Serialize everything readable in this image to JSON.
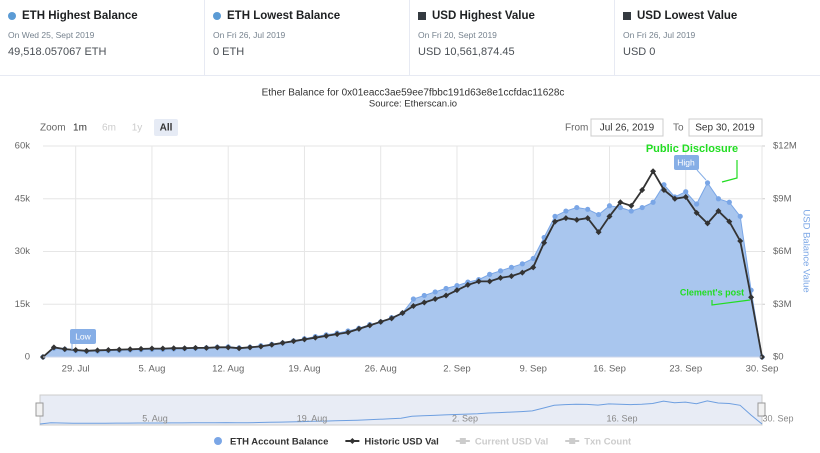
{
  "cards": [
    {
      "title": "ETH Highest Balance",
      "date": "On Wed 25, Sept 2019",
      "value": "49,518.057067 ETH"
    },
    {
      "title": "ETH Lowest Balance",
      "date": "On Fri 26, Jul 2019",
      "value": "0 ETH"
    },
    {
      "title": "USD Highest Value",
      "date": "On Fri 20, Sept 2019",
      "value": "USD 10,561,874.45"
    },
    {
      "title": "USD Lowest Value",
      "date": "On Fri 26, Jul 2019",
      "value": "USD 0"
    }
  ],
  "controls": {
    "zoom": "Zoom",
    "buttons": [
      "1m",
      "6m",
      "1y",
      "All"
    ],
    "from": "From",
    "from_date": "Jul 26, 2019",
    "to": "To",
    "to_date": "Sep 30, 2019"
  },
  "navigator": {
    "labels": [
      "5. Aug",
      "19. Aug",
      "2. Sep",
      "16. Sep",
      "30. Sep"
    ]
  },
  "chart_data": {
    "type": "line",
    "title": "Ether Balance for 0x01eacc3ae59ee7fbbc191d63e8e1ccfdac11628c",
    "subtitle": "Source: Etherscan.io",
    "y2_label": "USD Balance Value",
    "categories": [
      null,
      null,
      null,
      "29. Jul",
      null,
      null,
      null,
      null,
      null,
      null,
      "5. Aug",
      null,
      null,
      null,
      null,
      null,
      null,
      "12. Aug",
      null,
      null,
      null,
      null,
      null,
      null,
      "19. Aug",
      null,
      null,
      null,
      null,
      null,
      null,
      "26. Aug",
      null,
      null,
      null,
      null,
      null,
      null,
      "2. Sep",
      null,
      null,
      null,
      null,
      null,
      null,
      "9. Sep",
      null,
      null,
      null,
      null,
      null,
      null,
      "16. Sep",
      null,
      null,
      null,
      null,
      null,
      null,
      "23. Sep",
      null,
      null,
      null,
      null,
      null,
      null,
      "30. Sep"
    ],
    "series": [
      {
        "name": "ETH Account Balance",
        "color": "#7aa6e6",
        "fill": "#a9c6ee",
        "values": [
          0,
          2500,
          2200,
          1800,
          1600,
          1700,
          1800,
          1900,
          2000,
          2100,
          2200,
          2200,
          2300,
          2400,
          2500,
          2600,
          2800,
          2900,
          2600,
          2800,
          3200,
          3600,
          4000,
          4600,
          5200,
          5800,
          6300,
          6800,
          7400,
          8200,
          9200,
          10000,
          11200,
          12500,
          16500,
          17500,
          18500,
          19500,
          20300,
          21300,
          22000,
          23500,
          24500,
          25500,
          26500,
          28000,
          34000,
          40000,
          41500,
          42500,
          42000,
          40500,
          43000,
          42500,
          41500,
          42500,
          44000,
          49000,
          45500,
          47000,
          43500,
          49518.057067,
          45000,
          44000,
          40000,
          19000,
          0
        ]
      },
      {
        "name": "Historic USD Val",
        "color": "#333333",
        "axis": "y2",
        "values": [
          0,
          550000,
          450000,
          400000,
          350000,
          380000,
          400000,
          420000,
          440000,
          460000,
          480000,
          480000,
          500000,
          500000,
          520000,
          520000,
          550000,
          550000,
          500000,
          550000,
          600000,
          700000,
          800000,
          900000,
          1000000,
          1100000,
          1200000,
          1300000,
          1400000,
          1600000,
          1800000,
          2000000,
          2200000,
          2500000,
          2900000,
          3100000,
          3300000,
          3500000,
          3800000,
          4100000,
          4300000,
          4300000,
          4500000,
          4600000,
          4800000,
          5100000,
          6500000,
          7700000,
          7900000,
          7800000,
          7900000,
          7100000,
          8000000,
          8800000,
          8600000,
          9500000,
          10561874.45,
          9500000,
          9000000,
          9100000,
          8200000,
          7600000,
          8300000,
          7700000,
          6600000,
          3400000,
          0
        ]
      }
    ],
    "legend_hidden": [
      "Current USD Val",
      "Txn Count"
    ],
    "ylim": [
      0,
      60000
    ],
    "yticks": [
      0,
      {
        "value": 15000,
        "label": "15k"
      },
      {
        "value": 30000,
        "label": "30k"
      },
      {
        "value": 45000,
        "label": "45k"
      },
      {
        "value": 60000,
        "label": "60k"
      }
    ],
    "y2lim": [
      0,
      12000000
    ],
    "y2ticks": [
      {
        "value": 0,
        "label": "$0"
      },
      {
        "value": 3000000,
        "label": "$3M"
      },
      {
        "value": 6000000,
        "label": "$6M"
      },
      {
        "value": 9000000,
        "label": "$9M"
      },
      {
        "value": 12000000,
        "label": "$12M"
      }
    ],
    "grid": true,
    "annotations": [
      "Low",
      "High",
      "Public Disclosure",
      "Clement's post"
    ]
  }
}
